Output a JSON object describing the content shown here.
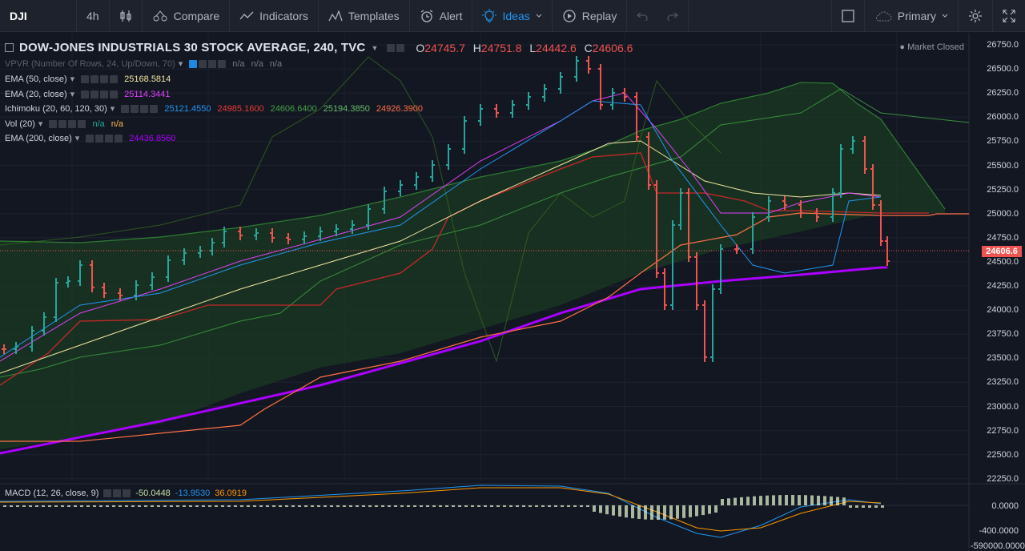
{
  "toolbar": {
    "symbol": "DJI",
    "interval": "4h",
    "compare": "Compare",
    "indicators": "Indicators",
    "templates": "Templates",
    "alert": "Alert",
    "ideas": "Ideas",
    "replay": "Replay",
    "layout": "Primary"
  },
  "header": {
    "title": "DOW-JONES INDUSTRIALS 30 STOCK AVERAGE, 240, TVC",
    "o_label": "O",
    "o": "24745.7",
    "h_label": "H",
    "h": "24751.8",
    "l_label": "L",
    "l": "24442.6",
    "c_label": "C",
    "c": "24606.6",
    "market_status": "Market Closed"
  },
  "legends": [
    {
      "name": "VPVR (Number Of Rows, 24, Up/Down, 70)",
      "values": [
        "n/a",
        "n/a",
        "n/a"
      ],
      "colors": [
        "#787b86",
        "#787b86",
        "#787b86"
      ],
      "dim": true
    },
    {
      "name": "EMA (50, close)",
      "values": [
        "25168.5814"
      ],
      "colors": [
        "#f2e6a0"
      ]
    },
    {
      "name": "EMA (20, close)",
      "values": [
        "25114.3441"
      ],
      "colors": [
        "#e040fb"
      ]
    },
    {
      "name": "Ichimoku (20, 60, 120, 30)",
      "values": [
        "25121.4550",
        "24985.1600",
        "24606.6400",
        "25194.3850",
        "24926.3900"
      ],
      "colors": [
        "#2196f3",
        "#e53935",
        "#43a047",
        "#66bb6a",
        "#ff7043"
      ]
    },
    {
      "name": "Vol (20)",
      "values": [
        "n/a",
        "n/a"
      ],
      "colors": [
        "#26a69a",
        "#ffb74d"
      ]
    },
    {
      "name": "EMA (200, close)",
      "values": [
        "24436.8560"
      ],
      "colors": [
        "#aa00ff"
      ]
    }
  ],
  "price_axis": {
    "labels": [
      "26750.0",
      "26500.0",
      "26250.0",
      "26000.0",
      "25750.0",
      "25500.0",
      "25250.0",
      "25000.0",
      "24750.0",
      "24500.0",
      "24250.0",
      "24000.0",
      "23750.0",
      "23500.0",
      "23250.0",
      "23000.0",
      "22750.0",
      "22500.0",
      "22250.0"
    ],
    "current": "24606.6"
  },
  "macd": {
    "name": "MACD (12, 26, close, 9)",
    "values": [
      "-50.0448",
      "-13.9530",
      "36.0919"
    ],
    "colors": [
      "#c5e1a5",
      "#2196f3",
      "#ff9800"
    ],
    "axis": [
      "0.0000",
      "-400.0000",
      "-590000.0000"
    ]
  },
  "colors": {
    "up": "#26a69a",
    "down": "#ef5350",
    "bg": "#131722"
  }
}
